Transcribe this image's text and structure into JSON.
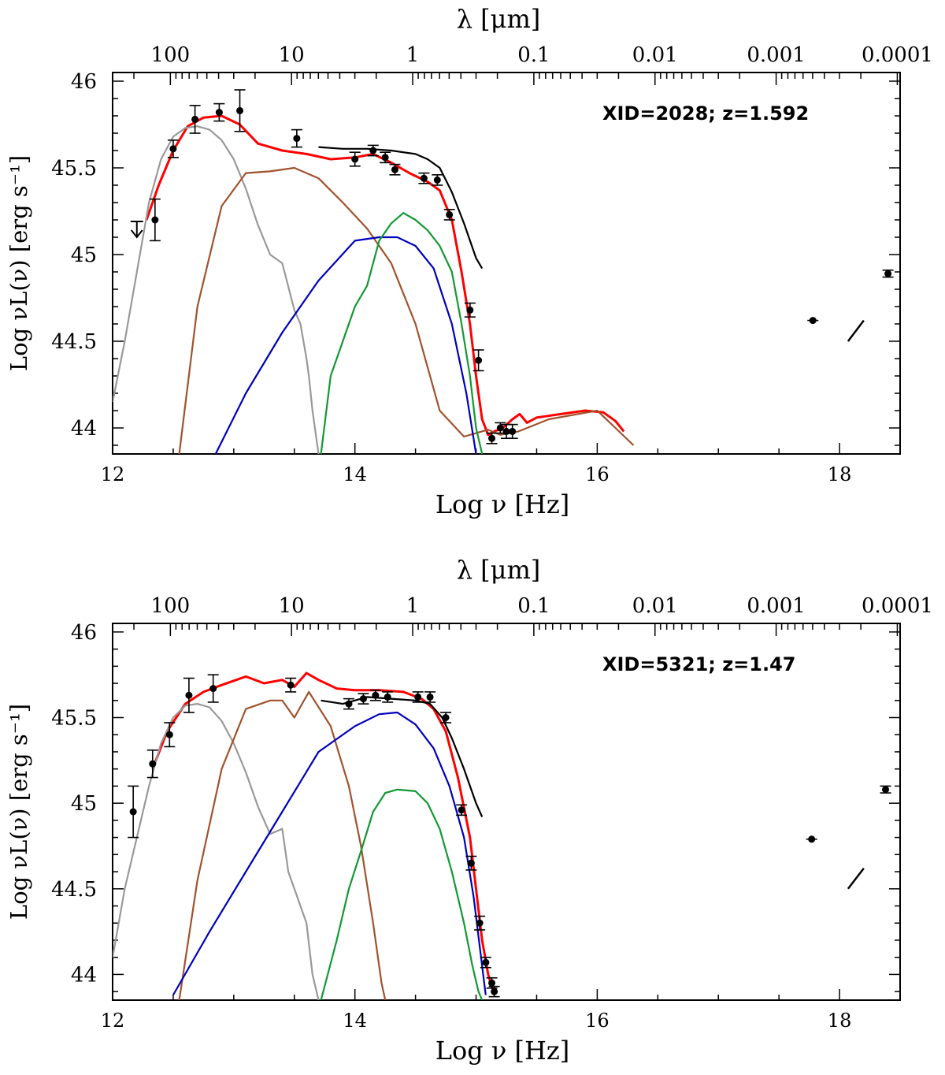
{
  "chart_data": [
    {
      "type": "scatter",
      "annotation": "XID=2028; z=1.592",
      "xlabel": "Log ν [Hz]",
      "ylabel": "Log νL(ν) [erg s⁻¹]",
      "top_axis_label": "λ [μm]",
      "xlim": [
        12,
        18.5
      ],
      "ylim": [
        43.85,
        46.05
      ],
      "x_ticks": [
        "12",
        "14",
        "16",
        "18"
      ],
      "y_ticks": [
        "44",
        "44.5",
        "45",
        "45.5",
        "46"
      ],
      "top_ticks": [
        "100",
        "10",
        "1",
        "0.1",
        "0.01",
        "0.001",
        "0.0001"
      ],
      "grid": false,
      "points": [
        {
          "x": 12.35,
          "y": 45.2,
          "err": 0.12
        },
        {
          "x": 12.5,
          "y": 45.61,
          "err": 0.05
        },
        {
          "x": 12.68,
          "y": 45.78,
          "err": 0.08
        },
        {
          "x": 12.88,
          "y": 45.82,
          "err": 0.05
        },
        {
          "x": 13.05,
          "y": 45.83,
          "err": 0.12
        },
        {
          "x": 13.52,
          "y": 45.67,
          "err": 0.05
        },
        {
          "x": 14.0,
          "y": 45.55,
          "err": 0.04
        },
        {
          "x": 14.15,
          "y": 45.6,
          "err": 0.03
        },
        {
          "x": 14.25,
          "y": 45.56,
          "err": 0.03
        },
        {
          "x": 14.33,
          "y": 45.49,
          "err": 0.03
        },
        {
          "x": 14.57,
          "y": 45.44,
          "err": 0.03
        },
        {
          "x": 14.68,
          "y": 45.43,
          "err": 0.03
        },
        {
          "x": 14.78,
          "y": 45.23,
          "err": 0.03
        },
        {
          "x": 14.95,
          "y": 44.68,
          "err": 0.04
        },
        {
          "x": 15.02,
          "y": 44.39,
          "err": 0.06
        },
        {
          "x": 15.13,
          "y": 43.94,
          "err": 0.03
        },
        {
          "x": 15.2,
          "y": 44.0,
          "err": 0.03
        },
        {
          "x": 15.25,
          "y": 43.98,
          "err": 0.04
        },
        {
          "x": 15.3,
          "y": 43.98,
          "err": 0.04
        },
        {
          "x": 17.78,
          "y": 44.62,
          "err": 0.0
        },
        {
          "x": 18.4,
          "y": 44.89,
          "err": 0.02
        }
      ],
      "upper_limits": [
        {
          "x": 12.2,
          "y": 45.1
        }
      ],
      "xray_segments": [
        {
          "x1": 18.07,
          "y1": 44.5,
          "x2": 18.2,
          "y2": 44.62
        }
      ],
      "series": [
        {
          "color": "#ff0000",
          "x": [
            12.28,
            12.38,
            12.5,
            12.62,
            12.75,
            12.9,
            13.05,
            13.2,
            13.4,
            13.6,
            13.8,
            14.0,
            14.15,
            14.3,
            14.45,
            14.6,
            14.7,
            14.8,
            14.88,
            14.95,
            15.0,
            15.05,
            15.1,
            15.15,
            15.22,
            15.3,
            15.36,
            15.42,
            15.5,
            15.7,
            15.9,
            16.05,
            16.15,
            16.22
          ],
          "y": [
            45.2,
            45.4,
            45.6,
            45.74,
            45.79,
            45.8,
            45.75,
            45.64,
            45.6,
            45.58,
            45.55,
            45.56,
            45.58,
            45.53,
            45.47,
            45.42,
            45.37,
            45.2,
            44.9,
            44.6,
            44.3,
            44.05,
            43.96,
            43.98,
            44.0,
            44.05,
            44.08,
            44.03,
            44.06,
            44.08,
            44.1,
            44.09,
            44.04,
            43.98
          ]
        },
        {
          "color": "#000000",
          "x": [
            13.7,
            13.9,
            14.1,
            14.3,
            14.5,
            14.6,
            14.7,
            14.8,
            14.9,
            15.0,
            15.05
          ],
          "y": [
            45.62,
            45.61,
            45.61,
            45.6,
            45.58,
            45.55,
            45.5,
            45.36,
            45.18,
            44.98,
            44.92
          ]
        },
        {
          "color": "#999999",
          "x": [
            12.0,
            12.1,
            12.2,
            12.3,
            12.4,
            12.5,
            12.6,
            12.7,
            12.8,
            12.9,
            13.0,
            13.1,
            13.2,
            13.3,
            13.4,
            13.5,
            13.55,
            13.6,
            13.62,
            13.65,
            13.7
          ],
          "y": [
            44.15,
            44.5,
            44.9,
            45.3,
            45.55,
            45.68,
            45.73,
            45.74,
            45.72,
            45.66,
            45.55,
            45.38,
            45.17,
            45.0,
            44.95,
            44.68,
            44.6,
            44.4,
            44.3,
            44.1,
            43.85
          ]
        },
        {
          "color": "#a0522d",
          "x": [
            12.55,
            12.7,
            12.9,
            13.1,
            13.3,
            13.5,
            13.7,
            13.9,
            14.1,
            14.3,
            14.5,
            14.7,
            14.9,
            15.0,
            15.1,
            15.2,
            15.35,
            15.6,
            16.0,
            16.15,
            16.3
          ],
          "y": [
            43.85,
            44.7,
            45.28,
            45.47,
            45.48,
            45.5,
            45.44,
            45.3,
            45.15,
            44.95,
            44.6,
            44.1,
            43.95,
            43.97,
            43.99,
            43.96,
            43.98,
            44.05,
            44.1,
            44.0,
            43.9
          ],
          "comment": "brown torus"
        },
        {
          "color": "#0000bb",
          "x": [
            12.85,
            13.1,
            13.4,
            13.7,
            14.0,
            14.2,
            14.35,
            14.5,
            14.65,
            14.8,
            14.92,
            15.0
          ],
          "y": [
            43.85,
            44.2,
            44.55,
            44.85,
            45.08,
            45.1,
            45.1,
            45.05,
            44.92,
            44.6,
            44.2,
            43.85
          ]
        },
        {
          "color": "#119933",
          "x": [
            13.72,
            13.8,
            13.9,
            14.0,
            14.1,
            14.2,
            14.3,
            14.4,
            14.5,
            14.6,
            14.7,
            14.8,
            14.88,
            14.95,
            15.0,
            15.05
          ],
          "y": [
            43.85,
            44.3,
            44.5,
            44.7,
            44.82,
            45.08,
            45.18,
            45.24,
            45.2,
            45.14,
            45.05,
            44.9,
            44.6,
            44.3,
            44.0,
            43.85
          ]
        }
      ]
    },
    {
      "type": "scatter",
      "annotation": "XID=5321; z=1.47",
      "xlabel": "Log ν [Hz]",
      "ylabel": "Log νL(ν) [erg s⁻¹]",
      "top_axis_label": "λ [μm]",
      "xlim": [
        12,
        18.5
      ],
      "ylim": [
        43.85,
        46.05
      ],
      "x_ticks": [
        "12",
        "14",
        "16",
        "18"
      ],
      "y_ticks": [
        "44",
        "44.5",
        "45",
        "45.5",
        "46"
      ],
      "top_ticks": [
        "100",
        "10",
        "1",
        "0.1",
        "0.01",
        "0.001",
        "0.0001"
      ],
      "grid": false,
      "points": [
        {
          "x": 12.17,
          "y": 44.95,
          "err": 0.15
        },
        {
          "x": 12.33,
          "y": 45.23,
          "err": 0.08
        },
        {
          "x": 12.47,
          "y": 45.4,
          "err": 0.07
        },
        {
          "x": 12.63,
          "y": 45.63,
          "err": 0.1
        },
        {
          "x": 12.83,
          "y": 45.67,
          "err": 0.08
        },
        {
          "x": 13.47,
          "y": 45.69,
          "err": 0.04
        },
        {
          "x": 13.95,
          "y": 45.58,
          "err": 0.03
        },
        {
          "x": 14.07,
          "y": 45.61,
          "err": 0.03
        },
        {
          "x": 14.17,
          "y": 45.63,
          "err": 0.03
        },
        {
          "x": 14.27,
          "y": 45.62,
          "err": 0.03
        },
        {
          "x": 14.52,
          "y": 45.62,
          "err": 0.03
        },
        {
          "x": 14.62,
          "y": 45.62,
          "err": 0.03
        },
        {
          "x": 14.75,
          "y": 45.5,
          "err": 0.03
        },
        {
          "x": 14.88,
          "y": 44.96,
          "err": 0.03
        },
        {
          "x": 14.96,
          "y": 44.65,
          "err": 0.04
        },
        {
          "x": 15.03,
          "y": 44.3,
          "err": 0.04
        },
        {
          "x": 15.08,
          "y": 44.07,
          "err": 0.03
        },
        {
          "x": 15.13,
          "y": 43.95,
          "err": 0.03
        },
        {
          "x": 15.15,
          "y": 43.9,
          "err": 0.03
        },
        {
          "x": 17.77,
          "y": 44.79,
          "err": 0.0
        },
        {
          "x": 18.38,
          "y": 45.08,
          "err": 0.02
        }
      ],
      "upper_limits": [],
      "xray_segments": [
        {
          "x1": 18.07,
          "y1": 44.5,
          "x2": 18.2,
          "y2": 44.62
        }
      ],
      "series": [
        {
          "color": "#ff0000",
          "x": [
            12.33,
            12.45,
            12.6,
            12.75,
            12.9,
            13.1,
            13.25,
            13.4,
            13.5,
            13.6,
            13.7,
            13.85,
            14.0,
            14.2,
            14.4,
            14.55,
            14.65,
            14.75,
            14.85,
            14.95,
            15.0,
            15.05,
            15.1,
            15.15
          ],
          "y": [
            45.2,
            45.42,
            45.58,
            45.65,
            45.69,
            45.74,
            45.7,
            45.72,
            45.68,
            45.76,
            45.72,
            45.67,
            45.66,
            45.66,
            45.65,
            45.61,
            45.55,
            45.42,
            45.15,
            44.8,
            44.5,
            44.2,
            44.0,
            43.88
          ]
        },
        {
          "color": "#000000",
          "x": [
            13.72,
            13.9,
            14.1,
            14.3,
            14.5,
            14.62,
            14.72,
            14.8,
            14.9,
            15.0,
            15.05
          ],
          "y": [
            45.6,
            45.58,
            45.62,
            45.61,
            45.6,
            45.58,
            45.5,
            45.38,
            45.2,
            45.0,
            44.92
          ]
        },
        {
          "color": "#999999",
          "x": [
            12.0,
            12.1,
            12.2,
            12.3,
            12.4,
            12.5,
            12.6,
            12.7,
            12.8,
            12.9,
            13.0,
            13.1,
            13.2,
            13.3,
            13.4,
            13.45,
            13.5,
            13.55,
            13.6,
            13.65,
            13.7
          ],
          "y": [
            44.1,
            44.5,
            44.8,
            45.1,
            45.35,
            45.5,
            45.57,
            45.58,
            45.56,
            45.48,
            45.35,
            45.18,
            44.98,
            44.82,
            44.85,
            44.6,
            44.5,
            44.4,
            44.3,
            44.0,
            43.85
          ]
        },
        {
          "color": "#a0522d",
          "x": [
            12.55,
            12.7,
            12.9,
            13.1,
            13.3,
            13.4,
            13.5,
            13.62,
            13.8,
            13.95,
            14.05,
            14.15,
            14.22,
            14.25
          ],
          "y": [
            43.85,
            44.55,
            45.2,
            45.55,
            45.6,
            45.6,
            45.5,
            45.65,
            45.45,
            45.1,
            44.75,
            44.3,
            43.95,
            43.85
          ]
        },
        {
          "color": "#0000bb",
          "x": [
            12.5,
            12.8,
            13.1,
            13.4,
            13.7,
            14.0,
            14.2,
            14.35,
            14.5,
            14.65,
            14.78,
            14.9,
            14.98,
            15.05,
            15.08
          ],
          "y": [
            43.88,
            44.25,
            44.6,
            44.95,
            45.3,
            45.45,
            45.52,
            45.53,
            45.46,
            45.32,
            45.1,
            44.8,
            44.45,
            44.05,
            43.88
          ]
        },
        {
          "color": "#119933",
          "x": [
            13.72,
            13.85,
            13.95,
            14.05,
            14.15,
            14.25,
            14.35,
            14.5,
            14.6,
            14.7,
            14.8,
            14.9,
            14.97,
            15.02,
            15.05
          ],
          "y": [
            43.85,
            44.2,
            44.5,
            44.72,
            44.95,
            45.06,
            45.08,
            45.07,
            45.0,
            44.85,
            44.6,
            44.3,
            44.05,
            43.9,
            43.85
          ]
        }
      ]
    }
  ]
}
